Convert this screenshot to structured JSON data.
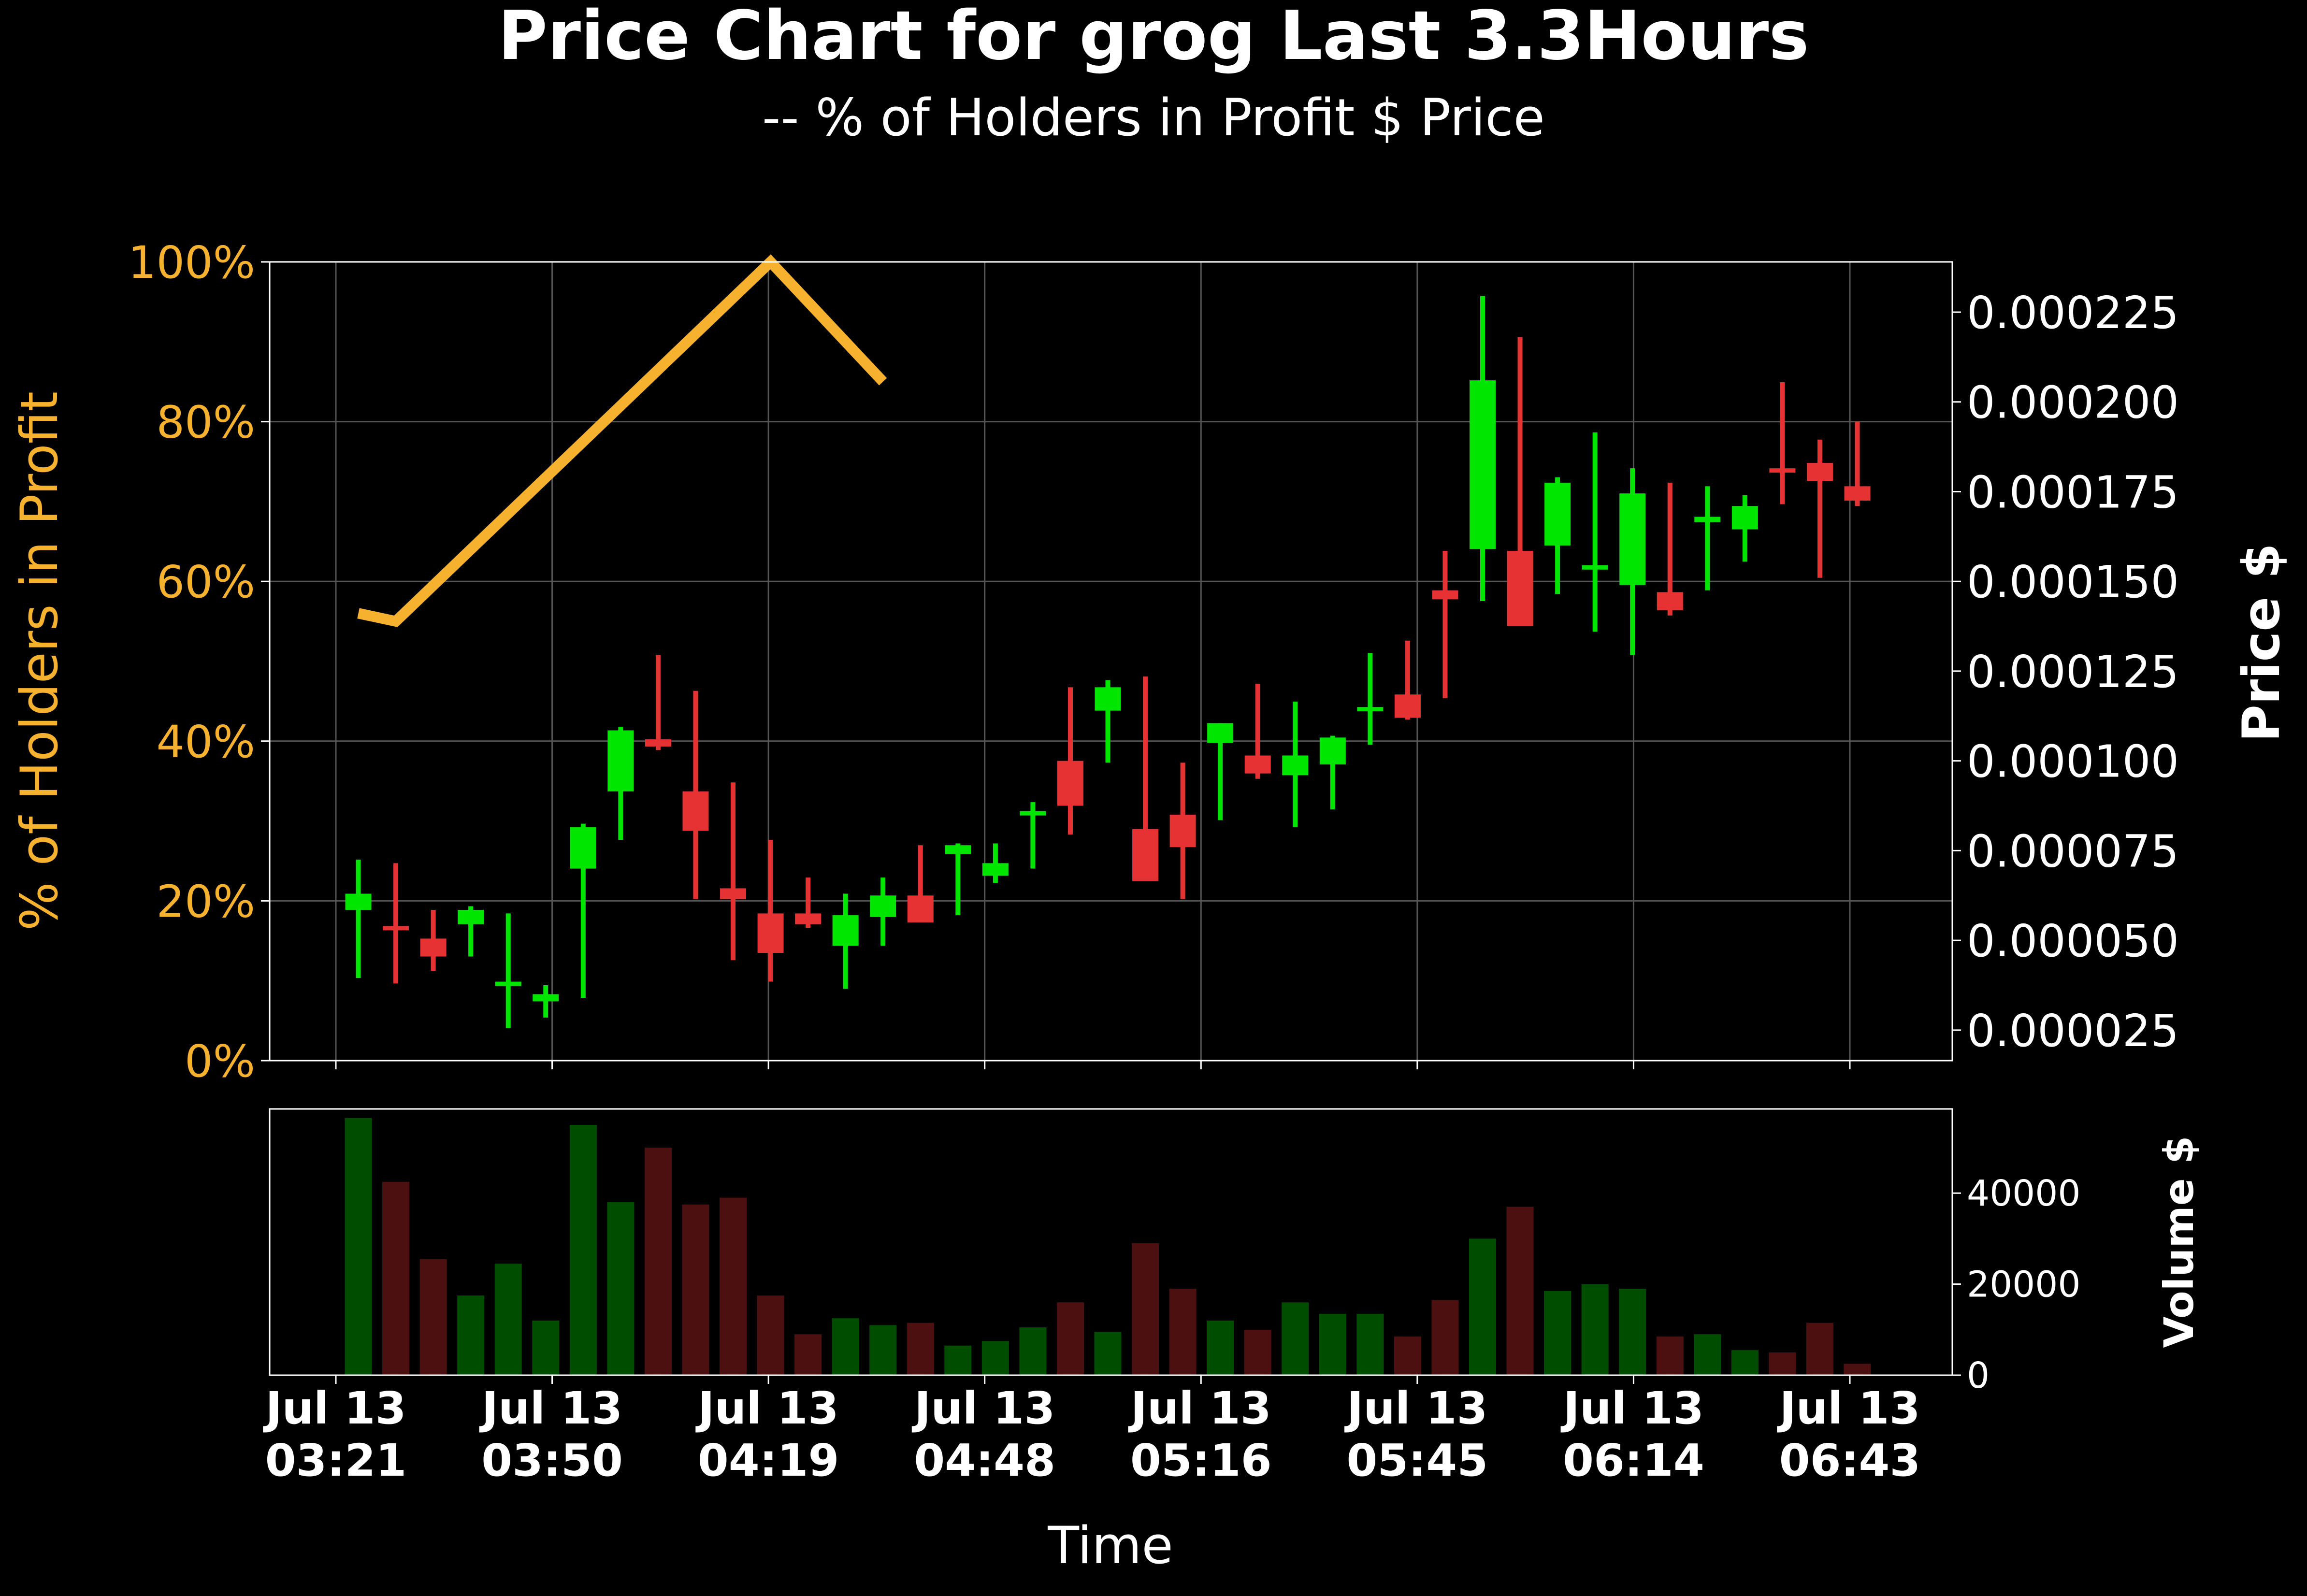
{
  "title": "Price Chart for grog Last 3.3Hours",
  "subtitle": "-- % of Holders in Profit $ Price",
  "colors": {
    "background": "#000000",
    "up": "#00e600",
    "down": "#e63232",
    "vol_up": "#004d00",
    "vol_down": "#4d1010",
    "profit_line": "#f6b12f",
    "grid": "#555555",
    "frame": "#ffffff",
    "text": "#ffffff"
  },
  "chart_data": [
    {
      "type": "candlestick",
      "title": "Price Chart for grog Last 3.3Hours",
      "subtitle": "-- % of Holders in Profit $ Price",
      "xlabel": "Time",
      "ylabel_left": "% of Holders in Profit",
      "ylabel_right": "Price $",
      "grid": true,
      "x_ticks": [
        "Jul 13 03:21",
        "Jul 13 03:50",
        "Jul 13 04:19",
        "Jul 13 04:48",
        "Jul 13 05:16",
        "Jul 13 05:45",
        "Jul 13 06:14",
        "Jul 13 06:43"
      ],
      "left_axis": {
        "ylim": [
          0,
          100
        ],
        "ticks": [
          "0%",
          "20%",
          "40%",
          "60%",
          "80%",
          "100%"
        ]
      },
      "right_axis": {
        "ylim": [
          1.65e-05,
          0.000239
        ],
        "ticks": [
          "0.000025",
          "0.000050",
          "0.000075",
          "0.000100",
          "0.000125",
          "0.000150",
          "0.000175",
          "0.000200",
          "0.000225"
        ]
      },
      "candles": [
        {
          "time": "03:24",
          "open": 5.85e-05,
          "high": 7.25e-05,
          "low": 3.95e-05,
          "close": 6.3e-05
        },
        {
          "time": "03:29",
          "open": 5.4e-05,
          "high": 7.15e-05,
          "low": 3.8e-05,
          "close": 5.3e-05
        },
        {
          "time": "03:34",
          "open": 5.05e-05,
          "high": 5.85e-05,
          "low": 4.15e-05,
          "close": 4.55e-05
        },
        {
          "time": "03:39",
          "open": 5.45e-05,
          "high": 5.95e-05,
          "low": 4.55e-05,
          "close": 5.85e-05
        },
        {
          "time": "03:44",
          "open": 3.85e-05,
          "high": 5.75e-05,
          "low": 2.55e-05,
          "close": 3.85e-05
        },
        {
          "time": "03:49",
          "open": 3.3e-05,
          "high": 3.75e-05,
          "low": 2.85e-05,
          "close": 3.5e-05
        },
        {
          "time": "03:54",
          "open": 7e-05,
          "high": 8.25e-05,
          "low": 3.4e-05,
          "close": 8.15e-05
        },
        {
          "time": "03:59",
          "open": 9.15e-05,
          "high": 0.0001095,
          "low": 7.8e-05,
          "close": 0.0001085
        },
        {
          "time": "04:04",
          "open": 0.000106,
          "high": 0.0001295,
          "low": 0.000103,
          "close": 0.000104
        },
        {
          "time": "04:09",
          "open": 9.15e-05,
          "high": 0.0001195,
          "low": 6.15e-05,
          "close": 8.05e-05
        },
        {
          "time": "04:14",
          "open": 6.45e-05,
          "high": 9.4e-05,
          "low": 4.45e-05,
          "close": 6.15e-05
        },
        {
          "time": "04:19",
          "open": 5.75e-05,
          "high": 7.8e-05,
          "low": 3.85e-05,
          "close": 4.65e-05
        },
        {
          "time": "04:24",
          "open": 5.75e-05,
          "high": 6.75e-05,
          "low": 5.35e-05,
          "close": 5.45e-05
        },
        {
          "time": "04:29",
          "open": 4.85e-05,
          "high": 6.3e-05,
          "low": 3.65e-05,
          "close": 5.7e-05
        },
        {
          "time": "04:34",
          "open": 5.65e-05,
          "high": 6.75e-05,
          "low": 4.85e-05,
          "close": 6.25e-05
        },
        {
          "time": "04:39",
          "open": 6.25e-05,
          "high": 7.65e-05,
          "low": 5.5e-05,
          "close": 5.5e-05
        },
        {
          "time": "04:44",
          "open": 7.4e-05,
          "high": 7.7e-05,
          "low": 5.7e-05,
          "close": 7.65e-05
        },
        {
          "time": "04:49",
          "open": 6.8e-05,
          "high": 7.7e-05,
          "low": 6.6e-05,
          "close": 7.15e-05
        },
        {
          "time": "04:54",
          "open": 8.6e-05,
          "high": 8.85e-05,
          "low": 7e-05,
          "close": 8.6e-05
        },
        {
          "time": "04:59",
          "open": 0.0001,
          "high": 0.0001205,
          "low": 7.95e-05,
          "close": 8.75e-05
        },
        {
          "time": "05:04",
          "open": 0.000114,
          "high": 0.0001225,
          "low": 9.95e-05,
          "close": 0.0001205
        },
        {
          "time": "05:09",
          "open": 8.1e-05,
          "high": 0.0001235,
          "low": 7.4e-05,
          "close": 6.65e-05
        },
        {
          "time": "05:14",
          "open": 8.5e-05,
          "high": 9.95e-05,
          "low": 6.15e-05,
          "close": 7.6e-05
        },
        {
          "time": "05:19",
          "open": 0.000105,
          "high": 0.0001105,
          "low": 8.35e-05,
          "close": 0.0001105
        },
        {
          "time": "05:24",
          "open": 0.0001015,
          "high": 0.0001215,
          "low": 9.5e-05,
          "close": 9.65e-05
        },
        {
          "time": "05:29",
          "open": 9.6e-05,
          "high": 0.0001165,
          "low": 8.15e-05,
          "close": 0.0001015
        },
        {
          "time": "05:34",
          "open": 9.9e-05,
          "high": 0.000107,
          "low": 8.65e-05,
          "close": 0.0001065
        },
        {
          "time": "05:39",
          "open": 0.000114,
          "high": 0.00013,
          "low": 0.0001045,
          "close": 0.000115
        },
        {
          "time": "05:44",
          "open": 0.0001185,
          "high": 0.0001335,
          "low": 0.0001115,
          "close": 0.000112
        },
        {
          "time": "05:49",
          "open": 0.0001475,
          "high": 0.0001585,
          "low": 0.0001175,
          "close": 0.000145
        },
        {
          "time": "05:54",
          "open": 0.000159,
          "high": 0.0002295,
          "low": 0.0001445,
          "close": 0.000206
        },
        {
          "time": "05:59",
          "open": 0.0001585,
          "high": 0.000218,
          "low": 0.0001395,
          "close": 0.0001375
        },
        {
          "time": "06:04",
          "open": 0.00016,
          "high": 0.000179,
          "low": 0.0001465,
          "close": 0.0001775
        },
        {
          "time": "06:09",
          "open": 0.0001545,
          "high": 0.0001915,
          "low": 0.000136,
          "close": 0.0001545
        },
        {
          "time": "06:14",
          "open": 0.000149,
          "high": 0.0001815,
          "low": 0.0001295,
          "close": 0.0001745
        },
        {
          "time": "06:19",
          "open": 0.000147,
          "high": 0.0001775,
          "low": 0.0001405,
          "close": 0.000142
        },
        {
          "time": "06:24",
          "open": 0.0001665,
          "high": 0.0001765,
          "low": 0.0001475,
          "close": 0.000168
        },
        {
          "time": "06:29",
          "open": 0.0001645,
          "high": 0.000174,
          "low": 0.0001555,
          "close": 0.000171
        },
        {
          "time": "06:34",
          "open": 0.0001815,
          "high": 0.0002055,
          "low": 0.0001715,
          "close": 0.000181
        },
        {
          "time": "06:39",
          "open": 0.000183,
          "high": 0.0001895,
          "low": 0.000151,
          "close": 0.000178
        },
        {
          "time": "06:44",
          "open": 0.0001765,
          "high": 0.0001945,
          "low": 0.000171,
          "close": 0.0001725
        }
      ],
      "profit_line": [
        {
          "time": "03:24",
          "value": 56
        },
        {
          "time": "03:29",
          "value": 55
        },
        {
          "time": "04:19",
          "value": 100
        },
        {
          "time": "04:34",
          "value": 85
        }
      ]
    },
    {
      "type": "bar",
      "ylabel": "Volume $",
      "ylim": [
        0,
        58500
      ],
      "ticks": [
        "0",
        "20000",
        "40000"
      ],
      "values": [
        56500,
        42500,
        25500,
        17500,
        24500,
        12000,
        55000,
        38000,
        50000,
        37500,
        39000,
        17500,
        9000,
        12500,
        11000,
        11500,
        6500,
        7500,
        10500,
        16000,
        9500,
        29000,
        19000,
        12000,
        10000,
        16000,
        13500,
        13500,
        8500,
        16500,
        30000,
        37000,
        18500,
        20000,
        19000,
        8500,
        9000,
        5500,
        5000,
        11500,
        2500
      ]
    }
  ]
}
